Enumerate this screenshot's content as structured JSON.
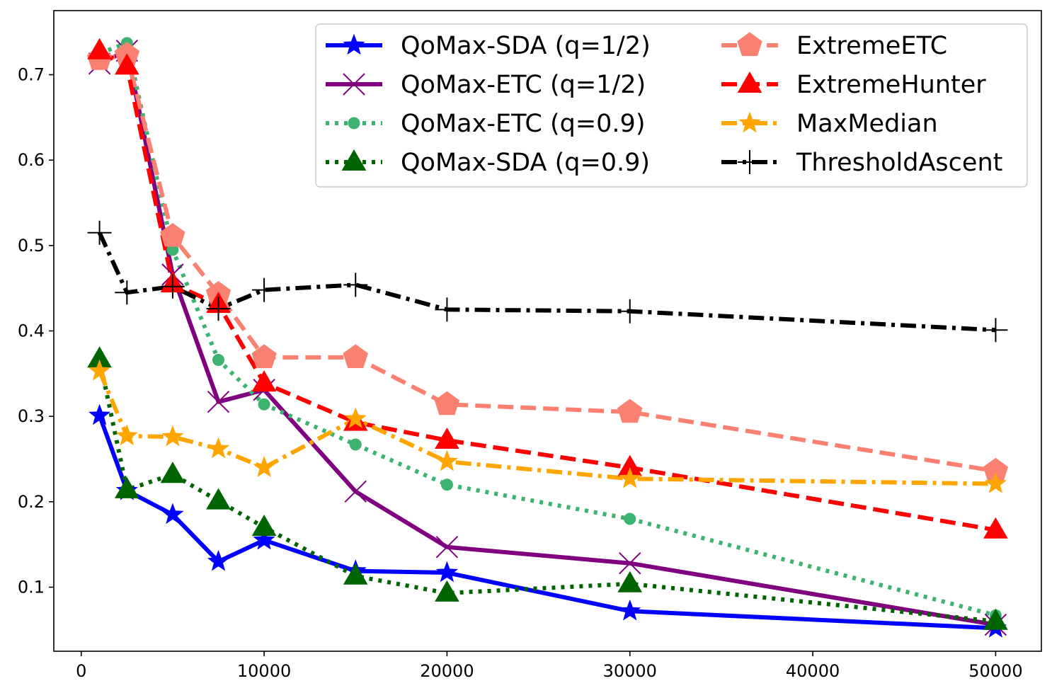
{
  "chart_data": {
    "type": "line",
    "title": "",
    "xlabel": "",
    "ylabel": "",
    "xlim": [
      -1500,
      52500
    ],
    "ylim": [
      0.025,
      0.775
    ],
    "xticks": [
      0,
      10000,
      20000,
      30000,
      40000,
      50000
    ],
    "yticks": [
      0.1,
      0.2,
      0.3,
      0.4,
      0.5,
      0.6,
      0.7
    ],
    "xtick_labels": [
      "0",
      "10000",
      "20000",
      "30000",
      "40000",
      "50000"
    ],
    "ytick_labels": [
      "0.1",
      "0.2",
      "0.3",
      "0.4",
      "0.5",
      "0.6",
      "0.7"
    ],
    "grid": false,
    "legend_position": "top-right",
    "x": [
      1000,
      2500,
      5000,
      7500,
      10000,
      15000,
      20000,
      30000,
      50000
    ],
    "series": [
      {
        "name": "QoMax-SDA (q=1/2)",
        "color": "#0000ff",
        "linestyle": "solid",
        "marker": "star",
        "values": [
          0.301,
          0.213,
          0.185,
          0.13,
          0.155,
          0.119,
          0.117,
          0.072,
          0.052
        ]
      },
      {
        "name": "QoMax-ETC (q=1/2)",
        "color": "#800080",
        "linestyle": "solid",
        "marker": "x",
        "values": [
          0.713,
          0.728,
          0.466,
          0.317,
          0.331,
          0.212,
          0.147,
          0.128,
          0.056
        ]
      },
      {
        "name": "QoMax-ETC (q=0.9)",
        "color": "#3cb371",
        "linestyle": "dotted",
        "marker": "circle",
        "values": [
          0.725,
          0.737,
          0.495,
          0.366,
          0.314,
          0.267,
          0.22,
          0.18,
          0.067
        ]
      },
      {
        "name": "QoMax-SDA (q=0.9)",
        "color": "#006400",
        "linestyle": "dotted",
        "marker": "triangle",
        "values": [
          0.367,
          0.214,
          0.232,
          0.201,
          0.17,
          0.113,
          0.093,
          0.104,
          0.06
        ]
      },
      {
        "name": "ExtremeETC",
        "color": "#fa8072",
        "linestyle": "dashed",
        "marker": "pentagon",
        "values": [
          0.718,
          0.723,
          0.511,
          0.443,
          0.369,
          0.369,
          0.314,
          0.305,
          0.236
        ]
      },
      {
        "name": "ExtremeHunter",
        "color": "#ff0000",
        "linestyle": "dashed",
        "marker": "triangle",
        "values": [
          0.728,
          0.71,
          0.455,
          0.431,
          0.339,
          0.293,
          0.272,
          0.24,
          0.167
        ]
      },
      {
        "name": "MaxMedian",
        "color": "#ffa500",
        "linestyle": "dashdot",
        "marker": "star",
        "values": [
          0.353,
          0.277,
          0.276,
          0.262,
          0.24,
          0.297,
          0.247,
          0.227,
          0.221
        ]
      },
      {
        "name": "ThresholdAscent",
        "color": "#000000",
        "linestyle": "dashdot",
        "marker": "plus",
        "values": [
          0.515,
          0.445,
          0.452,
          0.426,
          0.448,
          0.454,
          0.425,
          0.423,
          0.401
        ]
      }
    ]
  }
}
